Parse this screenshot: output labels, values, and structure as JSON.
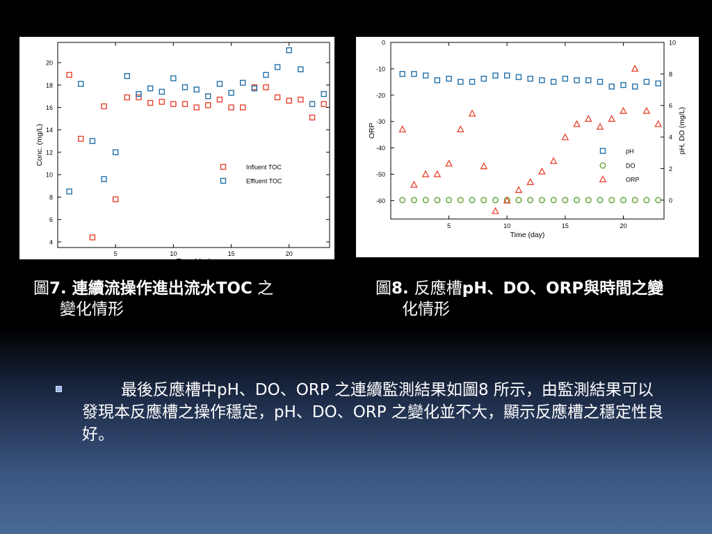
{
  "captions": {
    "fig7_prefix": "圖",
    "fig7_bold": "7. 連續流操作進出流水TOC",
    "fig7_rest": " 之",
    "fig7_line2": "變化情形",
    "fig8_prefix": "圖",
    "fig8_bold": "8. ",
    "fig8_text": "反應槽",
    "fig8_bold2": "pH、DO、ORP與時間之變",
    "fig8_line2": "化情形"
  },
  "body_text": "最後反應槽中pH、DO、ORP 之連續監測結果如圖8 所示，由監測結果可以發現本反應槽之操作穩定，pH、DO、ORP 之變化並不大，顯示反應槽之穩定性良好。",
  "colors": {
    "red": "#e8412c",
    "blue": "#1f6fa8",
    "green": "#5aa02c"
  },
  "chart_data": [
    {
      "type": "scatter",
      "xlabel": "Time (day)",
      "ylabel": "Conc. (mg/L)",
      "xlim": [
        0,
        23.5
      ],
      "ylim": [
        3.5,
        21.8
      ],
      "xticks": [
        5,
        10,
        15,
        20
      ],
      "yticks": [
        4,
        6,
        8,
        10,
        12,
        14,
        16,
        18,
        20
      ],
      "legend_position": "bottom-right",
      "series": [
        {
          "name": "Influent TOC",
          "color": "#e8412c",
          "marker": "square",
          "x": [
            1,
            2,
            3,
            4,
            5,
            6,
            7,
            8,
            9,
            10,
            11,
            12,
            13,
            14,
            15,
            16,
            17,
            18,
            19,
            20,
            21,
            22,
            23
          ],
          "y": [
            18.9,
            13.2,
            4.4,
            16.1,
            7.8,
            16.9,
            16.9,
            16.4,
            16.5,
            16.3,
            16.3,
            16.0,
            16.2,
            16.7,
            16.0,
            16.0,
            17.8,
            17.8,
            16.9,
            16.6,
            16.7,
            15.1,
            16.3
          ]
        },
        {
          "name": "Effluent TOC",
          "color": "#1f6fa8",
          "marker": "square",
          "x": [
            1,
            2,
            3,
            4,
            5,
            6,
            7,
            8,
            9,
            10,
            11,
            12,
            13,
            14,
            15,
            16,
            17,
            18,
            19,
            20,
            21,
            22,
            23
          ],
          "y": [
            8.5,
            18.1,
            13.0,
            9.6,
            12.0,
            18.8,
            17.2,
            17.7,
            17.4,
            18.6,
            17.8,
            17.6,
            17.0,
            18.1,
            17.3,
            18.2,
            17.7,
            18.9,
            19.6,
            21.1,
            19.4,
            16.3,
            17.2
          ]
        }
      ]
    },
    {
      "type": "scatter",
      "xlabel": "Time (day)",
      "ylabel": "ORP",
      "y2label": "pH, DO (mg/L)",
      "xlim": [
        0,
        23.5
      ],
      "ylim": [
        -67,
        0
      ],
      "y2lim": [
        -1.2,
        10
      ],
      "xticks": [
        5,
        10,
        15,
        20
      ],
      "yticks": [
        0,
        -10,
        -20,
        -30,
        -40,
        -50,
        -60
      ],
      "y2ticks": [
        0,
        2,
        4,
        6,
        8,
        10
      ],
      "legend_position": "right",
      "series": [
        {
          "name": "pH",
          "axis": "right",
          "color": "#1f6fa8",
          "marker": "square",
          "x": [
            1,
            2,
            3,
            4,
            5,
            6,
            7,
            8,
            9,
            10,
            11,
            12,
            13,
            14,
            15,
            16,
            17,
            18,
            19,
            20,
            21,
            22,
            23
          ],
          "y": [
            8.0,
            8.0,
            7.9,
            7.6,
            7.7,
            7.5,
            7.5,
            7.7,
            7.9,
            7.9,
            7.8,
            7.7,
            7.6,
            7.5,
            7.7,
            7.6,
            7.6,
            7.5,
            7.2,
            7.3,
            7.2,
            7.5,
            7.4
          ]
        },
        {
          "name": "DO",
          "axis": "right",
          "color": "#5aa02c",
          "marker": "circle",
          "x": [
            1,
            2,
            3,
            4,
            5,
            6,
            7,
            8,
            9,
            10,
            11,
            12,
            13,
            14,
            15,
            16,
            17,
            18,
            19,
            20,
            21,
            22,
            23
          ],
          "y": [
            0,
            0,
            0,
            0,
            0,
            0,
            0,
            0,
            0,
            0,
            0,
            0,
            0,
            0,
            0,
            0,
            0,
            0,
            0,
            0,
            0,
            0,
            0
          ]
        },
        {
          "name": "ORP",
          "axis": "left",
          "color": "#e8412c",
          "marker": "triangle",
          "x": [
            1,
            2,
            3,
            4,
            5,
            6,
            7,
            8,
            9,
            10,
            11,
            12,
            13,
            14,
            15,
            16,
            17,
            18,
            19,
            20,
            21,
            22,
            23
          ],
          "y": [
            -33,
            -54,
            -50,
            -50,
            -46,
            -33,
            -27,
            -47,
            -64,
            -60,
            -56,
            -53,
            -49,
            -45,
            -36,
            -31,
            -29,
            -32,
            -29,
            -26,
            -10,
            -26,
            -31
          ]
        }
      ]
    }
  ]
}
